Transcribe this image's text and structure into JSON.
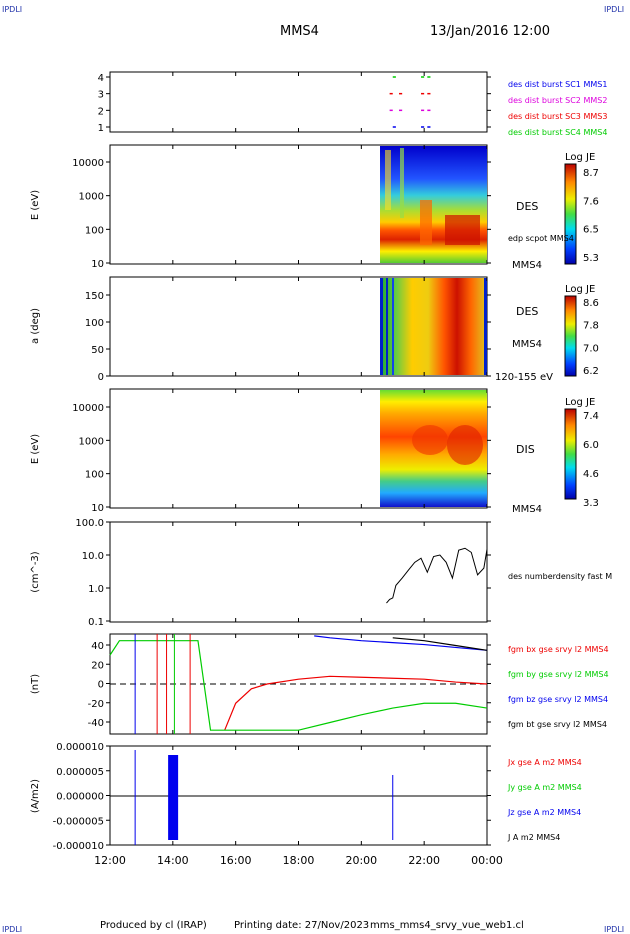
{
  "header": {
    "corner_tl": "IPDLI",
    "corner_tr": "IPDLI",
    "corner_bl": "IPDLI",
    "corner_br": "IPDLI",
    "mission": "MMS4",
    "date": "13/Jan/2016 12:00"
  },
  "footer": {
    "produced": "Produced by cl (IRAP)",
    "printing": "Printing date: 27/Nov/2023",
    "filename": "mms_mms4_srvy_vue_web1.cl"
  },
  "x_ticks": [
    "12:00",
    "14:00",
    "16:00",
    "18:00",
    "20:00",
    "22:00",
    "00:00"
  ],
  "colors": {
    "blue": "#0000ee",
    "magenta": "#dd00dd",
    "red": "#ee0000",
    "green": "#00cc00",
    "black": "#000000"
  },
  "panel1": {
    "y_ticks": [
      "4",
      "3",
      "2",
      "1"
    ],
    "legend": [
      "des dist burst SC1 MMS1",
      "des dist burst SC2 MMS2",
      "des dist burst SC3 MMS3",
      "des dist burst SC4 MMS4"
    ]
  },
  "panel2": {
    "ylabel": "E (eV)",
    "y_ticks": [
      "10000",
      "1000",
      "100",
      "10"
    ],
    "label_main": "DES",
    "label_sub": "edp scpot MMS4",
    "label_sc": "MMS4",
    "cbar_title": "Log JE",
    "cbar_ticks": [
      "8.7",
      "7.6",
      "6.5",
      "5.3"
    ]
  },
  "panel3": {
    "ylabel": "a (deg)",
    "y_ticks": [
      "150",
      "100",
      "50",
      "0"
    ],
    "label_main": "DES",
    "label_sc": "MMS4",
    "label_range": "120-155 eV",
    "cbar_title": "Log JE",
    "cbar_ticks": [
      "8.6",
      "7.8",
      "7.0",
      "6.2"
    ]
  },
  "panel4": {
    "ylabel": "E (eV)",
    "y_ticks": [
      "10000",
      "1000",
      "100",
      "10"
    ],
    "label_main": "DIS",
    "label_sc": "MMS4",
    "cbar_title": "Log JE",
    "cbar_ticks": [
      "7.4",
      "6.0",
      "4.6",
      "3.3"
    ]
  },
  "panel5": {
    "ylabel": "(cm^-3)",
    "y_ticks": [
      "100.0",
      "10.0",
      "1.0",
      "0.1"
    ],
    "legend": "des numberdensity fast M"
  },
  "panel6": {
    "ylabel": "(nT)",
    "y_ticks": [
      "40",
      "20",
      "0",
      "-20",
      "-40"
    ],
    "legend": [
      "fgm bx gse srvy l2 MMS4",
      "fgm by gse srvy l2 MMS4",
      "fgm bz gse srvy l2 MMS4",
      "fgm bt gse srvy l2 MMS4"
    ]
  },
  "panel7": {
    "ylabel": "(A/m2)",
    "y_ticks": [
      "0.000010",
      "0.000005",
      "0.000000",
      "-0.000005",
      "-0.000010"
    ],
    "legend": [
      "Jx gse A m2 MMS4",
      "Jy gse A m2 MMS4",
      "Jz gse A m2 MMS4",
      "J A m2 MMS4"
    ]
  },
  "chart_data": [
    {
      "type": "scatter",
      "panel": "burst-availability",
      "x_range_hours": [
        12,
        24
      ],
      "ylim": [
        0.5,
        4.5
      ],
      "series": [
        {
          "name": "des dist burst SC1 MMS1",
          "y": 1,
          "intervals": [
            [
              21.0,
              21.1
            ],
            [
              21.9,
              22.0
            ],
            [
              22.1,
              22.2
            ]
          ]
        },
        {
          "name": "des dist burst SC2 MMS2",
          "y": 2,
          "intervals": [
            [
              20.9,
              21.0
            ],
            [
              21.2,
              21.3
            ],
            [
              21.9,
              22.0
            ],
            [
              22.1,
              22.2
            ]
          ]
        },
        {
          "name": "des dist burst SC3 MMS3",
          "y": 3,
          "intervals": [
            [
              20.9,
              21.0
            ],
            [
              21.2,
              21.3
            ],
            [
              21.9,
              22.0
            ],
            [
              22.1,
              22.2
            ]
          ]
        },
        {
          "name": "des dist burst SC4 MMS4",
          "y": 4,
          "intervals": [
            [
              21.0,
              21.1
            ],
            [
              21.9,
              22.0
            ],
            [
              22.1,
              22.2
            ]
          ]
        }
      ]
    },
    {
      "type": "heatmap",
      "panel": "DES energy spectrogram",
      "x_range_hours": [
        20.6,
        24
      ],
      "ylim": [
        10,
        30000
      ],
      "log_y": true,
      "colorbar": [
        5.3,
        8.7
      ]
    },
    {
      "type": "heatmap",
      "panel": "DES pitch angle",
      "x_range_hours": [
        20.6,
        24
      ],
      "ylim": [
        0,
        180
      ],
      "colorbar": [
        6.2,
        8.6
      ]
    },
    {
      "type": "heatmap",
      "panel": "DIS energy spectrogram",
      "x_range_hours": [
        20.6,
        24
      ],
      "ylim": [
        10,
        30000
      ],
      "log_y": true,
      "colorbar": [
        3.3,
        7.4
      ]
    },
    {
      "type": "line",
      "panel": "number density",
      "ylim": [
        0.1,
        100
      ],
      "log_y": true,
      "series": [
        {
          "name": "des numberdensity fast M",
          "x": [
            20.8,
            20.9,
            21.0,
            21.1,
            21.3,
            21.5,
            21.7,
            21.9,
            22.1,
            22.3,
            22.5,
            22.7,
            22.9,
            23.1,
            23.3,
            23.5,
            23.7,
            23.9,
            24.0
          ],
          "y": [
            0.35,
            0.45,
            0.5,
            1.2,
            2.0,
            3.5,
            6.0,
            8.0,
            3.0,
            9.0,
            10.0,
            6.0,
            2.0,
            14.0,
            16.0,
            12.0,
            2.5,
            4.0,
            15.0
          ]
        }
      ]
    },
    {
      "type": "line",
      "panel": "magnetic field",
      "ylim": [
        -50,
        50
      ],
      "series": [
        {
          "name": "fgm bx gse srvy l2 MMS4",
          "x": [
            15.65,
            16.0,
            16.5,
            17.0,
            18.0,
            19.0,
            20.0,
            21.0,
            22.0,
            23.0,
            24.0
          ],
          "y": [
            -48,
            -20,
            -5,
            0,
            5,
            8,
            7,
            6,
            5,
            2,
            0
          ]
        },
        {
          "name": "fgm by gse srvy l2 MMS4",
          "x": [
            12.0,
            12.3,
            14.8,
            15.2,
            18.0,
            19.0,
            20.0,
            21.0,
            22.0,
            23.0,
            24.0
          ],
          "y": [
            30,
            45,
            45,
            -48,
            -48,
            -40,
            -32,
            -25,
            -20,
            -20,
            -25
          ]
        },
        {
          "name": "fgm bz gse srvy l2 MMS4",
          "x": [
            18.5,
            19.0,
            20.0,
            21.0,
            22.0,
            23.0,
            24.0
          ],
          "y": [
            50,
            48,
            45,
            43,
            41,
            38,
            35
          ]
        },
        {
          "name": "fgm bt gse srvy l2 MMS4",
          "x": [
            21.0,
            22.0,
            23.0,
            24.0
          ],
          "y": [
            48,
            45,
            40,
            35
          ]
        }
      ]
    },
    {
      "type": "line",
      "panel": "current density",
      "ylim": [
        -1e-05,
        1e-05
      ],
      "series": [
        {
          "name": "Jx gse A m2 MMS4",
          "x": [
            12,
            24
          ],
          "y": [
            0,
            0
          ]
        },
        {
          "name": "Jy gse A m2 MMS4",
          "x": [
            12,
            24
          ],
          "y": [
            0,
            0
          ]
        },
        {
          "name": "Jz gse A m2 MMS4",
          "x": [
            12,
            24
          ],
          "y": [
            0,
            0
          ]
        },
        {
          "name": "J A m2 MMS4",
          "x": [
            12,
            24
          ],
          "y": [
            0,
            0
          ]
        }
      ]
    }
  ]
}
